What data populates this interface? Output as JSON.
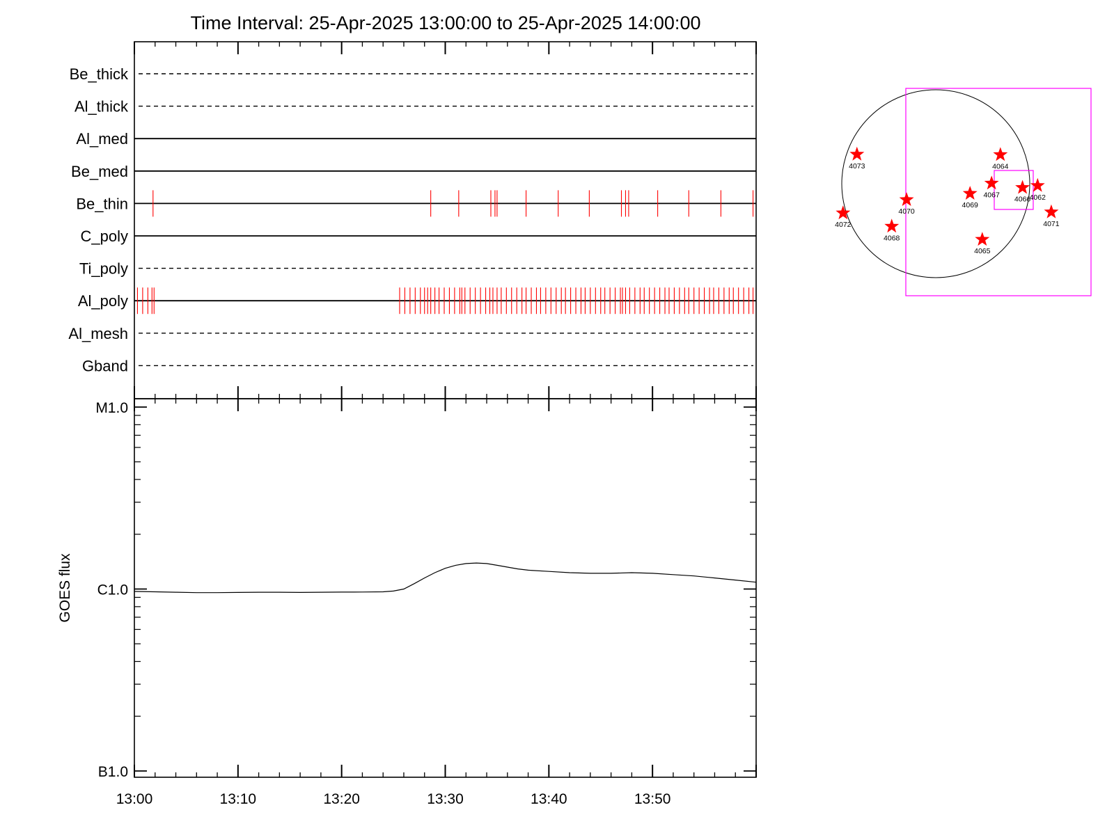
{
  "title": "Time Interval: 25-Apr-2025 13:00:00 to 25-Apr-2025 14:00:00",
  "channels": [
    {
      "label": "Be_thick",
      "style": "dashed"
    },
    {
      "label": "Al_thick",
      "style": "dashed"
    },
    {
      "label": "Al_med",
      "style": "solid"
    },
    {
      "label": "Be_med",
      "style": "solid"
    },
    {
      "label": "Be_thin",
      "style": "solid",
      "exposures_min": [
        1.8,
        28.6,
        31.3,
        34.4,
        34.8,
        35.0,
        37.8,
        40.9,
        43.9,
        47.0,
        47.4,
        47.7,
        50.5,
        53.5,
        56.6,
        59.7
      ]
    },
    {
      "label": "C_poly",
      "style": "solid"
    },
    {
      "label": "Ti_poly",
      "style": "dashed"
    },
    {
      "label": "Al_poly",
      "style": "solid",
      "exposures_min": [
        0.3,
        0.8,
        1.3,
        1.7,
        1.9,
        25.6,
        26.1,
        26.6,
        27.1,
        27.6,
        28.0,
        28.3,
        28.6,
        29.0,
        29.4,
        29.9,
        30.4,
        30.9,
        31.4,
        31.6,
        31.9,
        32.4,
        32.9,
        33.4,
        33.9,
        34.3,
        34.6,
        35.0,
        35.4,
        35.9,
        36.4,
        36.9,
        37.4,
        37.8,
        38.3,
        38.8,
        39.2,
        39.7,
        40.2,
        40.7,
        41.2,
        41.6,
        42.1,
        42.6,
        43.1,
        43.5,
        44.0,
        44.5,
        45.0,
        45.4,
        45.9,
        46.4,
        46.9,
        47.1,
        47.4,
        47.8,
        48.3,
        48.8,
        49.2,
        49.7,
        50.2,
        50.7,
        51.2,
        51.6,
        52.1,
        52.6,
        53.1,
        53.5,
        54.0,
        54.5,
        55.0,
        55.5,
        55.9,
        56.4,
        56.9,
        57.4,
        57.8,
        58.3,
        58.8,
        59.3,
        59.7
      ]
    },
    {
      "label": "Al_mesh",
      "style": "dashed"
    },
    {
      "label": "Gband",
      "style": "dashed"
    }
  ],
  "chart_data": {
    "type": "line",
    "title": "Time Interval: 25-Apr-2025 13:00:00 to 25-Apr-2025 14:00:00",
    "xlabel": "",
    "ylabel": "GOES flux",
    "y_scale": "log",
    "x_ticks": [
      "13:00",
      "13:10",
      "13:20",
      "13:30",
      "13:40",
      "13:50"
    ],
    "y_ticks": [
      "M1.0",
      "C1.0",
      "B1.0"
    ],
    "y_ticks_wm2": [
      1e-05,
      1e-06,
      1e-07
    ],
    "xlim_min": [
      0,
      60
    ],
    "ylim_wm2": [
      1e-07,
      1e-05
    ],
    "series": [
      {
        "x_min": [
          0,
          2,
          4,
          6,
          8,
          10,
          12,
          14,
          16,
          18,
          20,
          22,
          24,
          25,
          26,
          27,
          28,
          29,
          30,
          31,
          32,
          33,
          34,
          35,
          36,
          37,
          38,
          40,
          42,
          44,
          46,
          48,
          50,
          52,
          54,
          56,
          58,
          60
        ],
        "flux_wm2": [
          9.7e-07,
          9.65e-07,
          9.6e-07,
          9.55e-07,
          9.55e-07,
          9.58e-07,
          9.6e-07,
          9.6e-07,
          9.58e-07,
          9.6e-07,
          9.62e-07,
          9.63e-07,
          9.65e-07,
          9.75e-07,
          1e-06,
          1.07e-06,
          1.15e-06,
          1.23e-06,
          1.3e-06,
          1.35e-06,
          1.38e-06,
          1.39e-06,
          1.38e-06,
          1.35e-06,
          1.32e-06,
          1.29e-06,
          1.27e-06,
          1.25e-06,
          1.23e-06,
          1.22e-06,
          1.22e-06,
          1.23e-06,
          1.22e-06,
          1.2e-06,
          1.18e-06,
          1.15e-06,
          1.12e-06,
          1.09e-06
        ]
      }
    ]
  },
  "active_regions": [
    {
      "id": "4073",
      "x_arcsec": -805,
      "y_arcsec": 300
    },
    {
      "id": "4064",
      "x_arcsec": 660,
      "y_arcsec": 296
    },
    {
      "id": "4067",
      "x_arcsec": 570,
      "y_arcsec": 4
    },
    {
      "id": "4066",
      "x_arcsec": 886,
      "y_arcsec": -40
    },
    {
      "id": "4062",
      "x_arcsec": 1040,
      "y_arcsec": -20
    },
    {
      "id": "4069",
      "x_arcsec": 350,
      "y_arcsec": -100
    },
    {
      "id": "4070",
      "x_arcsec": -298,
      "y_arcsec": -164
    },
    {
      "id": "4072",
      "x_arcsec": -947,
      "y_arcsec": -300
    },
    {
      "id": "4071",
      "x_arcsec": 1180,
      "y_arcsec": -290
    },
    {
      "id": "4068",
      "x_arcsec": -450,
      "y_arcsec": -436
    },
    {
      "id": "4065",
      "x_arcsec": 475,
      "y_arcsec": -570
    }
  ],
  "colors": {
    "exposure": "#ff0000",
    "star": "#ff0000",
    "fov": "#ff00ff",
    "axes": "#000000",
    "curve": "#000000"
  }
}
